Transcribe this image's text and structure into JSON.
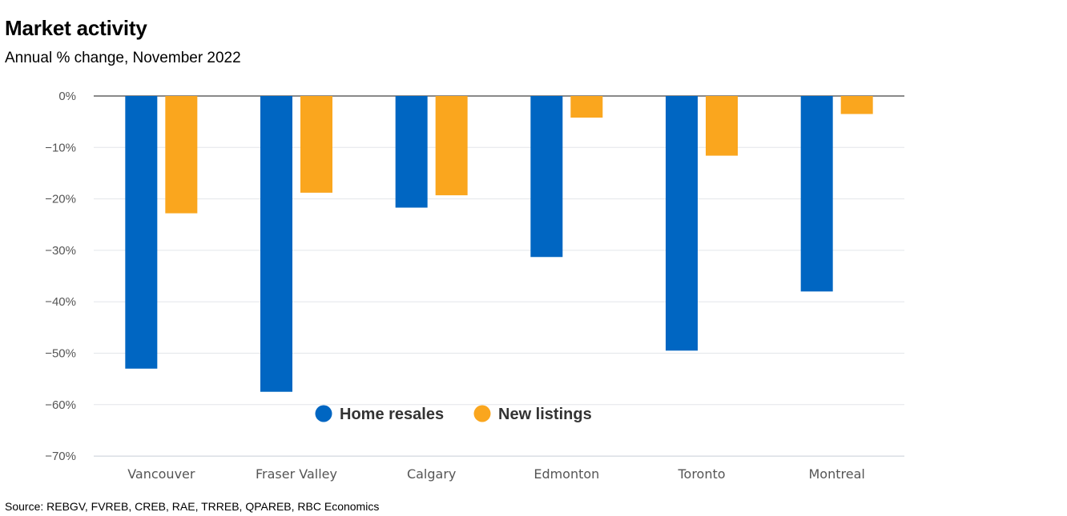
{
  "title": "Market activity",
  "subtitle": "Annual % change, November 2022",
  "source": "Source: REBGV, FVREB, CREB, RAE, TRREB, QPAREB, RBC Economics",
  "chart_data": {
    "type": "bar",
    "title": "Market activity",
    "subtitle": "Annual % change, November 2022",
    "categories": [
      "Vancouver",
      "Fraser Valley",
      "Calgary",
      "Edmonton",
      "Toronto",
      "Montreal"
    ],
    "series": [
      {
        "name": "Home resales",
        "color": "#0066c2",
        "values": [
          -53.0,
          -57.5,
          -21.7,
          -31.3,
          -49.5,
          -38.0
        ]
      },
      {
        "name": "New listings",
        "color": "#faa61e",
        "values": [
          -22.8,
          -18.8,
          -19.3,
          -4.2,
          -11.6,
          -3.5
        ]
      }
    ],
    "yticks": [
      0,
      -10,
      -20,
      -30,
      -40,
      -50,
      -60,
      -70
    ],
    "ytick_labels": [
      "0%",
      "−10%",
      "−20%",
      "−30%",
      "−40%",
      "−50%",
      "−60%",
      "−70%"
    ],
    "ylim": [
      -70,
      0
    ],
    "grid": true,
    "legend": "inside-bottom-center",
    "xlabel": "",
    "ylabel": ""
  }
}
